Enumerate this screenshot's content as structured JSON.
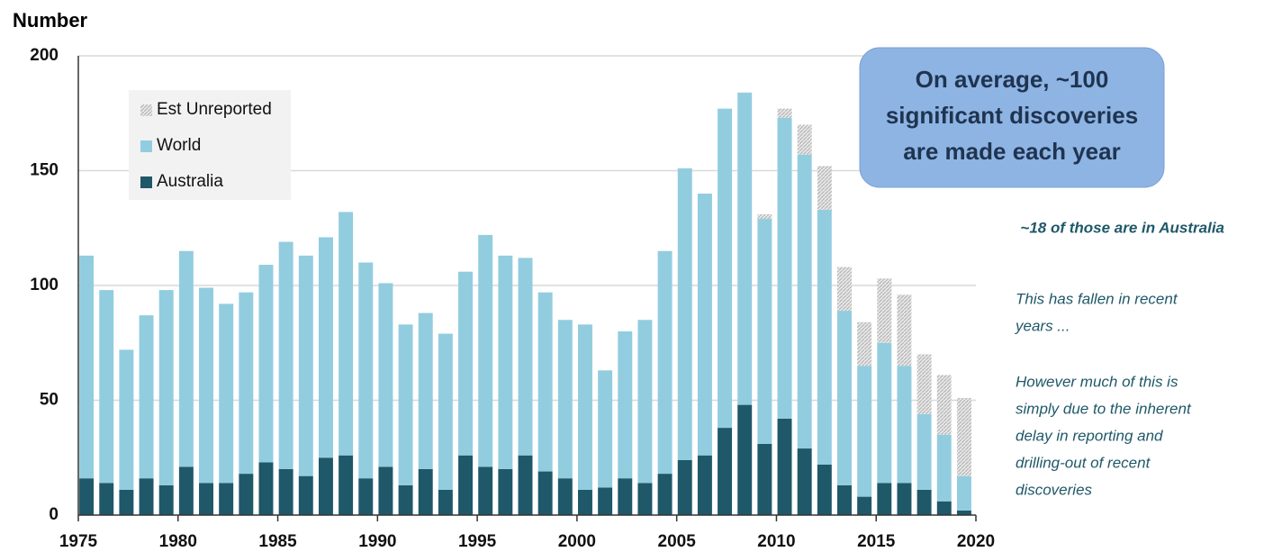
{
  "chart_data": {
    "type": "stacked_bar",
    "y_label": "Number",
    "x": [
      1975,
      1976,
      1977,
      1978,
      1979,
      1980,
      1981,
      1982,
      1983,
      1984,
      1985,
      1986,
      1987,
      1988,
      1989,
      1990,
      1991,
      1992,
      1993,
      1994,
      1995,
      1996,
      1997,
      1998,
      1999,
      2000,
      2001,
      2002,
      2003,
      2004,
      2005,
      2006,
      2007,
      2008,
      2009,
      2010,
      2011,
      2012,
      2013,
      2014,
      2015,
      2016,
      2017,
      2018,
      2019
    ],
    "series": [
      {
        "name": "Australia",
        "color": "#1f5868",
        "values": [
          16,
          14,
          11,
          16,
          13,
          21,
          14,
          14,
          18,
          23,
          20,
          17,
          25,
          26,
          16,
          21,
          13,
          20,
          11,
          26,
          21,
          20,
          26,
          19,
          16,
          11,
          12,
          16,
          14,
          18,
          24,
          26,
          38,
          48,
          31,
          42,
          29,
          22,
          13,
          8,
          14,
          14,
          11,
          6,
          2
        ]
      },
      {
        "name": "World",
        "color": "#92cddf",
        "values": [
          97,
          84,
          61,
          71,
          85,
          94,
          85,
          78,
          79,
          86,
          99,
          96,
          96,
          106,
          94,
          80,
          70,
          68,
          68,
          80,
          101,
          93,
          86,
          78,
          69,
          72,
          51,
          64,
          71,
          97,
          127,
          114,
          139,
          136,
          98,
          131,
          128,
          111,
          76,
          57,
          61,
          51,
          33,
          29,
          15
        ]
      },
      {
        "name": "Est Unreported",
        "color": "#b5b5b5",
        "pattern": "hatch",
        "values": [
          0,
          0,
          0,
          0,
          0,
          0,
          0,
          0,
          0,
          0,
          0,
          0,
          0,
          0,
          0,
          0,
          0,
          0,
          0,
          0,
          0,
          0,
          0,
          0,
          0,
          0,
          0,
          0,
          0,
          0,
          0,
          0,
          0,
          0,
          2,
          4,
          13,
          19,
          19,
          19,
          28,
          31,
          26,
          26,
          34
        ]
      }
    ],
    "xlim": [
      1975,
      2020
    ],
    "xticks": [
      1975,
      1980,
      1985,
      1990,
      1995,
      2000,
      2005,
      2010,
      2015,
      2020
    ],
    "ylim": [
      0,
      200
    ],
    "yticks": [
      0,
      50,
      100,
      150,
      200
    ],
    "grid": true,
    "legend": "upper left",
    "callout": [
      "On average, ~100",
      "significant discoveries",
      "are made each year"
    ],
    "note_australia": "~18 of those are in Australia",
    "note_fallen": [
      "This has fallen in recent",
      "years ..."
    ],
    "note_delay": [
      "However much of this is",
      "simply due to the inherent",
      "delay in reporting and",
      "drilling-out of recent",
      "discoveries"
    ]
  }
}
